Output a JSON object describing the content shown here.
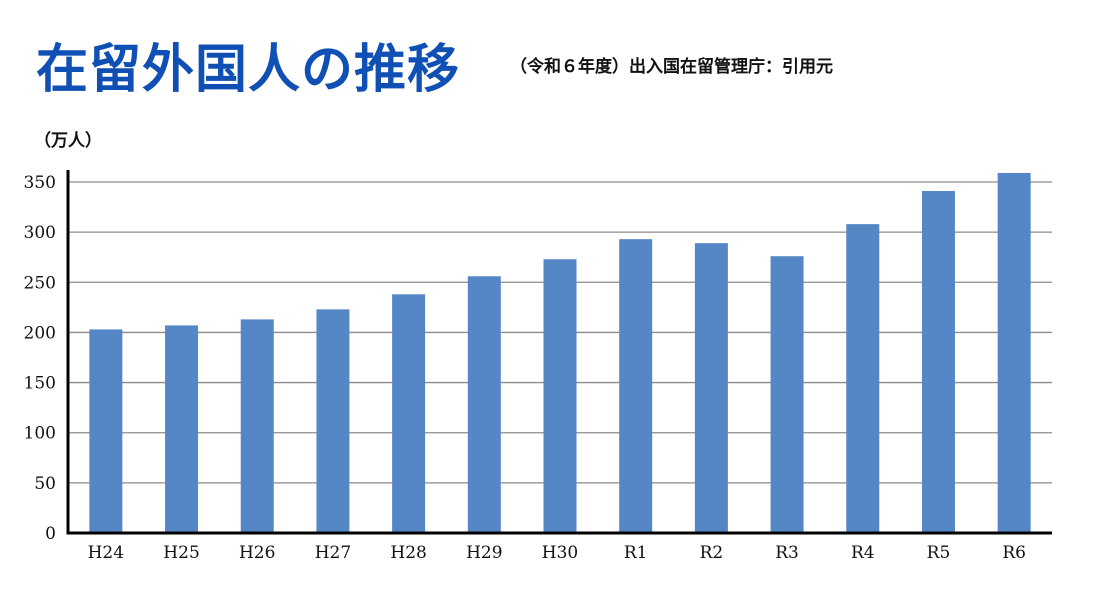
{
  "header": {
    "title": "在留外国人の推移",
    "source": "（令和６年度）出入国在留管理庁：引用元"
  },
  "colors": {
    "title": "#1050b4",
    "bar": "#5587c7",
    "grid": "#8c8c8c",
    "axis": "#000000"
  },
  "chart_data": {
    "type": "bar",
    "title": "在留外国人の推移",
    "ylabel": "（万人）",
    "xlabel": "",
    "ylim": [
      0,
      350
    ],
    "yticks": [
      0,
      50,
      100,
      150,
      200,
      250,
      300,
      350
    ],
    "grid": true,
    "legend": "none",
    "categories": [
      "H24",
      "H25",
      "H26",
      "H27",
      "H28",
      "H29",
      "H30",
      "R1",
      "R2",
      "R3",
      "R4",
      "R5",
      "R6"
    ],
    "values": [
      203,
      207,
      213,
      223,
      238,
      256,
      273,
      293,
      289,
      276,
      308,
      341,
      359
    ]
  }
}
